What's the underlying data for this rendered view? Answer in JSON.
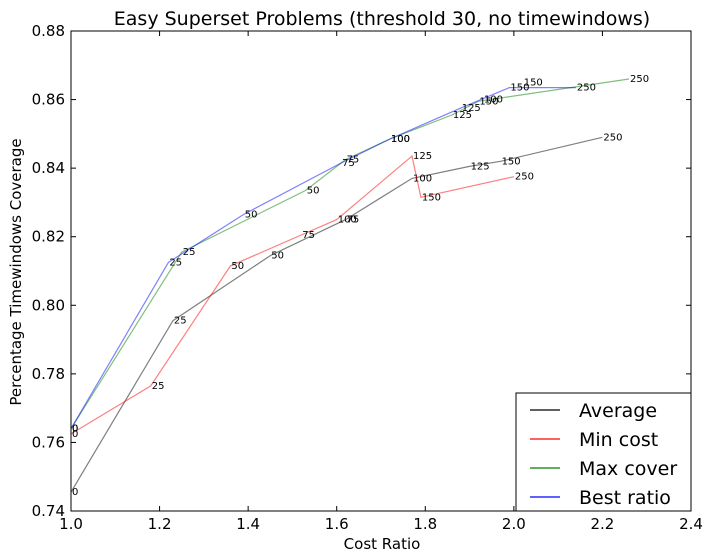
{
  "chart_data": {
    "type": "line",
    "title": "Easy Superset Problems (threshold 30, no timewindows)",
    "xlabel": "Cost Ratio",
    "ylabel": "Percentage Timewindows Coverage",
    "xlim": [
      1.0,
      2.4
    ],
    "ylim": [
      0.74,
      0.88
    ],
    "xticks": [
      1.0,
      1.2,
      1.4,
      1.6,
      1.8,
      2.0,
      2.2,
      2.4
    ],
    "xtick_labels": [
      "1.0",
      "1.2",
      "1.4",
      "1.6",
      "1.8",
      "2.0",
      "2.2",
      "2.4"
    ],
    "yticks": [
      0.74,
      0.76,
      0.78,
      0.8,
      0.82,
      0.84,
      0.86,
      0.88
    ],
    "ytick_labels": [
      "0.74",
      "0.76",
      "0.78",
      "0.80",
      "0.82",
      "0.84",
      "0.86",
      "0.88"
    ],
    "grid": false,
    "legend": "bottom-right",
    "series": [
      {
        "name": "Average",
        "color": "#000000",
        "points": [
          {
            "x": 1.0,
            "y": 0.7455,
            "label": "0"
          },
          {
            "x": 1.23,
            "y": 0.7955,
            "label": "25"
          },
          {
            "x": 1.45,
            "y": 0.8145,
            "label": "50"
          },
          {
            "x": 1.62,
            "y": 0.825,
            "label": "75"
          },
          {
            "x": 1.77,
            "y": 0.837,
            "label": "100"
          },
          {
            "x": 1.9,
            "y": 0.8405,
            "label": "125"
          },
          {
            "x": 1.97,
            "y": 0.842,
            "label": "150"
          },
          {
            "x": 2.2,
            "y": 0.849,
            "label": "250"
          }
        ]
      },
      {
        "name": "Min cost",
        "color": "#ff0000",
        "points": [
          {
            "x": 1.0,
            "y": 0.7625,
            "label": "0"
          },
          {
            "x": 1.18,
            "y": 0.7765,
            "label": "25"
          },
          {
            "x": 1.36,
            "y": 0.8115,
            "label": "50"
          },
          {
            "x": 1.52,
            "y": 0.8205,
            "label": "75"
          },
          {
            "x": 1.6,
            "y": 0.825,
            "label": "100"
          },
          {
            "x": 1.77,
            "y": 0.8435,
            "label": "125"
          },
          {
            "x": 1.79,
            "y": 0.8315,
            "label": "150"
          },
          {
            "x": 2.0,
            "y": 0.8375,
            "label": "250"
          }
        ]
      },
      {
        "name": "Max cover",
        "color": "#008000",
        "points": [
          {
            "x": 1.0,
            "y": 0.764,
            "label": "0"
          },
          {
            "x": 1.25,
            "y": 0.8155,
            "label": "25"
          },
          {
            "x": 1.53,
            "y": 0.8335,
            "label": "50"
          },
          {
            "x": 1.62,
            "y": 0.8425,
            "label": "75"
          },
          {
            "x": 1.72,
            "y": 0.8485,
            "label": "100"
          },
          {
            "x": 1.86,
            "y": 0.8555,
            "label": "125"
          },
          {
            "x": 1.92,
            "y": 0.8595,
            "label": "150"
          },
          {
            "x": 2.26,
            "y": 0.866,
            "label": "250"
          }
        ]
      },
      {
        "name": "Best ratio",
        "color": "#0000ff",
        "points": [
          {
            "x": 1.0,
            "y": 0.764,
            "label": "0"
          },
          {
            "x": 1.22,
            "y": 0.8125,
            "label": "25"
          },
          {
            "x": 1.39,
            "y": 0.8265,
            "label": "50"
          },
          {
            "x": 1.61,
            "y": 0.8415,
            "label": "75"
          },
          {
            "x": 1.72,
            "y": 0.8485,
            "label": "100"
          },
          {
            "x": 1.88,
            "y": 0.8575,
            "label": "125"
          },
          {
            "x": 1.99,
            "y": 0.8635,
            "label": "150"
          },
          {
            "x": 2.14,
            "y": 0.8635,
            "label": "250"
          }
        ]
      }
    ],
    "extra_labels": [
      {
        "series": "Max cover",
        "x": 1.93,
        "y": 0.86,
        "label": "100"
      },
      {
        "series": "Max cover",
        "x": 2.02,
        "y": 0.865,
        "label": "150"
      }
    ]
  }
}
